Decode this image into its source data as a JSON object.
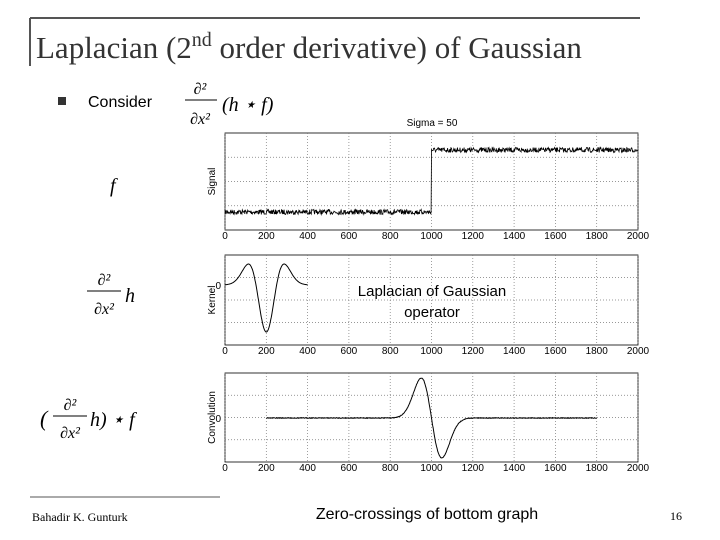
{
  "header": {
    "title": "Laplacian (2",
    "title_sup": "nd",
    "title_rest": " order derivative) of Gaussian"
  },
  "bullet": {
    "text": "Consider",
    "formula_num": "∂²",
    "formula_den": "∂x²",
    "formula_arg": "(h ⋆ f)"
  },
  "rows": [
    {
      "label": "f"
    },
    {
      "label_num": "∂²",
      "label_den": "∂x²",
      "label_arg": "h"
    },
    {
      "label_open": "(",
      "label_num": "∂²",
      "label_den": "∂x²",
      "label_arg": "h) ⋆ f"
    }
  ],
  "plots": [
    {
      "title": "Sigma = 50",
      "ylabel": "Signal"
    },
    {
      "ylabel": "Kernel",
      "ytick": "0"
    },
    {
      "ylabel": "Convolution",
      "ytick": "0"
    }
  ],
  "xticks": [
    0,
    200,
    400,
    600,
    800,
    1000,
    1200,
    1400,
    1600,
    1800,
    2000
  ],
  "annotation": [
    "Laplacian of Gaussian",
    "operator"
  ],
  "footer": {
    "author": "Bahadir K. Gunturk",
    "caption": "Zero-crossings of bottom graph",
    "page": "16"
  }
}
